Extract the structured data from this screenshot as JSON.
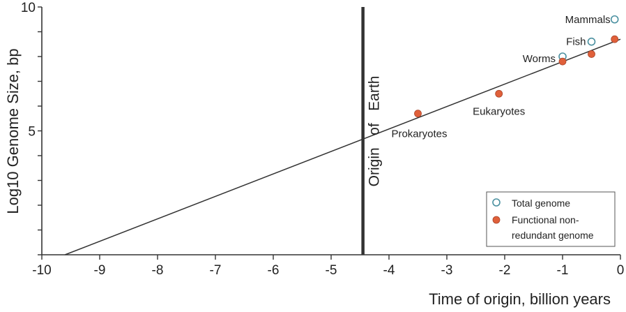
{
  "chart_data": {
    "type": "scatter",
    "title": "",
    "xlabel": "Time of origin, billion years",
    "ylabel": "Log10 Genome Size, bp",
    "xlim": [
      -10,
      0
    ],
    "ylim": [
      0,
      10
    ],
    "x_ticks": [
      -10,
      -9,
      -8,
      -7,
      -6,
      -5,
      -4,
      -3,
      -2,
      -1,
      0
    ],
    "x_tick_labels": [
      "-10",
      "-9",
      "-8",
      "-7",
      "-6",
      "-5",
      "-4",
      "-3",
      "-2",
      "-1",
      "0"
    ],
    "y_ticks": [
      0,
      1,
      2,
      3,
      4,
      5,
      6,
      7,
      8,
      9,
      10
    ],
    "y_tick_labels": {
      "5": "5",
      "10": "10"
    },
    "grid": false,
    "legend": {
      "placement": "bottom-right"
    },
    "series": [
      {
        "name": "Total genome",
        "marker": "open-circle",
        "color": "#4a90a0",
        "points": [
          {
            "x": -1.0,
            "y": 8.0
          },
          {
            "x": -0.5,
            "y": 8.6
          },
          {
            "x": -0.1,
            "y": 9.5
          }
        ]
      },
      {
        "name": "Functional non-redundant genome",
        "legend_lines": [
          "Functional non-",
          "redundant genome"
        ],
        "marker": "filled-circle",
        "color": "#e0603a",
        "points": [
          {
            "x": -3.5,
            "y": 5.7
          },
          {
            "x": -2.1,
            "y": 6.5
          },
          {
            "x": -1.0,
            "y": 7.8
          },
          {
            "x": -0.5,
            "y": 8.1
          },
          {
            "x": -0.1,
            "y": 8.7
          }
        ]
      }
    ],
    "trendline": {
      "x": [
        -9.6,
        0
      ],
      "y": [
        0,
        8.7
      ]
    },
    "vertical_line": {
      "x": -4.45,
      "label": "Origin   of   Earth"
    },
    "annotations": [
      {
        "text": "Mammals",
        "x": -0.1,
        "y": 9.5
      },
      {
        "text": "Fish",
        "x": -0.5,
        "y": 8.6
      },
      {
        "text": "Worms",
        "x": -1.0,
        "y": 8.0
      },
      {
        "text": "Eukaryotes",
        "x": -2.1,
        "y": 6.5
      },
      {
        "text": "Prokaryotes",
        "x": -3.5,
        "y": 5.7
      }
    ]
  }
}
